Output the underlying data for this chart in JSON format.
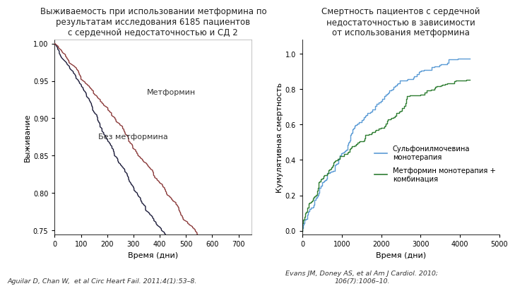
{
  "left_title": "Выживаемость при использовании метформина по\nрезультатам исследования 6185 пациентов\nс сердечной недостаточностью и СД 2",
  "left_xlabel": "Время (дни)",
  "left_ylabel": "Выживание",
  "left_xlim": [
    0,
    750
  ],
  "left_ylim": [
    0.745,
    1.005
  ],
  "left_yticks": [
    0.75,
    0.8,
    0.85,
    0.9,
    0.95,
    1.0
  ],
  "left_xticks": [
    0,
    100,
    200,
    300,
    400,
    500,
    600,
    700
  ],
  "left_citation": "Aguilar D, Chan W,  et al Circ Heart Fail. 2011;4(1):53–8.",
  "left_label_metformin": "Метформин",
  "left_label_no_metformin": "Без метформина",
  "right_title": "Смертность пациентов с сердечной\nнедостаточностью в зависимости\nот использования метформина",
  "right_xlabel": "Время (дни)",
  "right_ylabel": "Кумулятивная смертность",
  "right_xlim": [
    0,
    5000
  ],
  "right_ylim": [
    -0.02,
    1.08
  ],
  "right_yticks": [
    0,
    0.2,
    0.4,
    0.6,
    0.8,
    1.0
  ],
  "right_xticks": [
    0,
    1000,
    2000,
    3000,
    4000,
    5000
  ],
  "right_citation": "Evans JM, Doney AS, et al Am J Cardiol. 2010;\n106(7):1006–10.",
  "right_label_sulfo": "Сульфонилмочевина\nмонотерапия",
  "right_label_metformin": "Метформин монотерапия +\nкомбинация",
  "color_metformin": "#8B3A3A",
  "color_no_metformin": "#1C1C3A",
  "color_sulfo": "#5B9BD5",
  "color_met_combo": "#2E7D32",
  "bg_color": "#FFFFFF"
}
